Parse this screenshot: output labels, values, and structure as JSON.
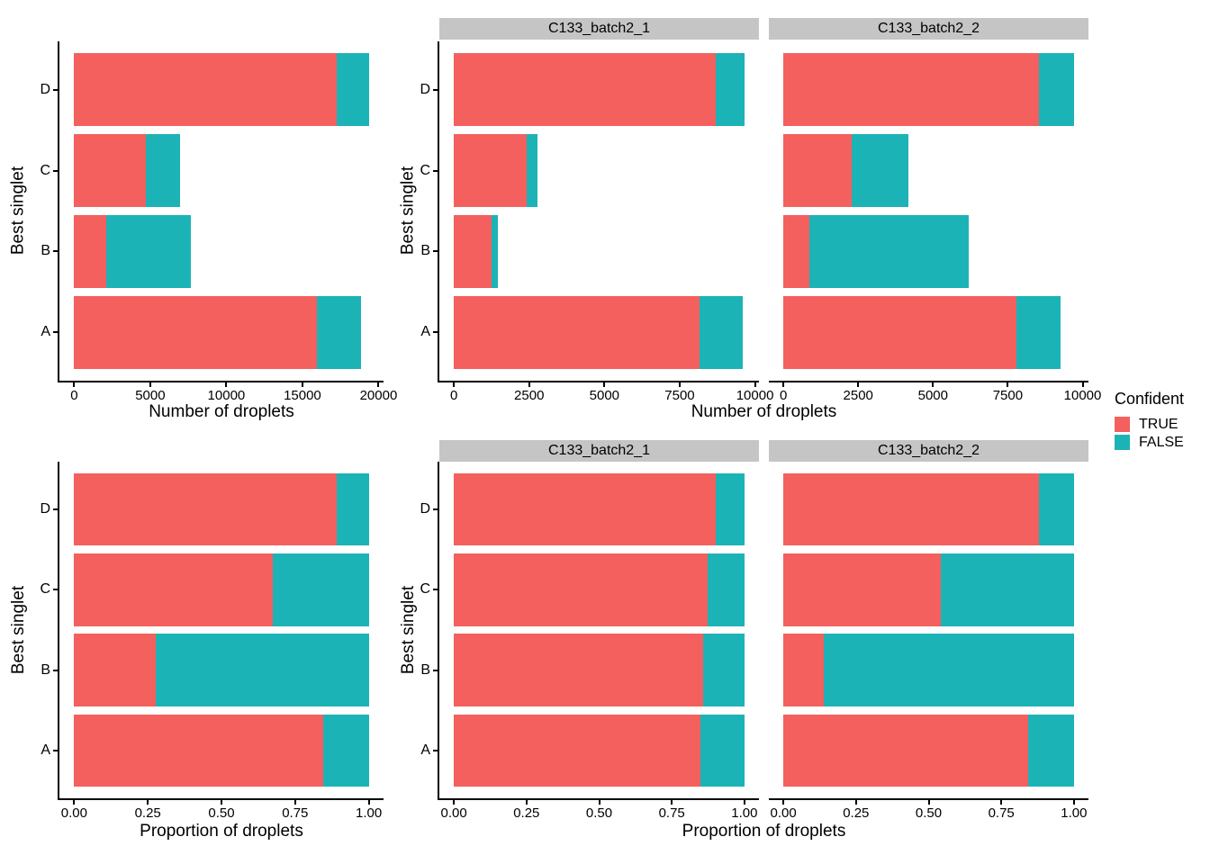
{
  "figure": {
    "background": "#FFFFFF",
    "colors": {
      "TRUE": "#F3605D",
      "FALSE": "#1CB3B7",
      "strip_bg": "#C5C5C5",
      "axis": "#000000",
      "text": "#000000"
    },
    "legend": {
      "title": "Confident",
      "position": "right-middle",
      "entries": [
        {
          "label": "TRUE",
          "color": "#F3605D"
        },
        {
          "label": "FALSE",
          "color": "#1CB3B7"
        }
      ]
    }
  },
  "chart_data": [
    {
      "id": "counts-overall",
      "type": "bar",
      "orientation": "horizontal",
      "stacked": true,
      "grid": false,
      "facet_label": null,
      "xlabel": "Number of droplets",
      "ylabel": "Best singlet",
      "categories": [
        "D",
        "C",
        "B",
        "A"
      ],
      "series": [
        {
          "name": "TRUE",
          "values": [
            17240,
            4690,
            2120,
            15950
          ]
        },
        {
          "name": "FALSE",
          "values": [
            2120,
            2260,
            5550,
            2920
          ]
        }
      ],
      "xlim": [
        0,
        19360
      ],
      "x_ticks": [
        0,
        5000,
        10000,
        15000,
        20000
      ],
      "x_tick_labels": [
        "0",
        "5000",
        "10000",
        "15000",
        "20000"
      ]
    },
    {
      "id": "counts-C133_batch2_1",
      "type": "bar",
      "orientation": "horizontal",
      "stacked": true,
      "grid": false,
      "facet_label": "C133_batch2_1",
      "xlabel": "Number of droplets",
      "ylabel": "Best singlet",
      "categories": [
        "D",
        "C",
        "B",
        "A"
      ],
      "series": [
        {
          "name": "TRUE",
          "values": [
            8700,
            2420,
            1260,
            8150
          ]
        },
        {
          "name": "FALSE",
          "values": [
            950,
            350,
            210,
            1450
          ]
        }
      ],
      "xlim": [
        0,
        9650
      ],
      "x_ticks": [
        0,
        2500,
        5000,
        7500,
        10000
      ],
      "x_tick_labels": [
        "0",
        "2500",
        "5000",
        "7500",
        "10000"
      ]
    },
    {
      "id": "counts-C133_batch2_2",
      "type": "bar",
      "orientation": "horizontal",
      "stacked": true,
      "grid": false,
      "facet_label": "C133_batch2_2",
      "xlabel": "Number of droplets",
      "ylabel": "Best singlet",
      "categories": [
        "D",
        "C",
        "B",
        "A"
      ],
      "series": [
        {
          "name": "TRUE",
          "values": [
            8540,
            2270,
            860,
            7800
          ]
        },
        {
          "name": "FALSE",
          "values": [
            1170,
            1910,
            5340,
            1470
          ]
        }
      ],
      "xlim": [
        0,
        9710
      ],
      "x_ticks": [
        0,
        2500,
        5000,
        7500,
        10000
      ],
      "x_tick_labels": [
        "0",
        "2500",
        "5000",
        "7500",
        "10000"
      ]
    },
    {
      "id": "proportions-overall",
      "type": "bar",
      "orientation": "horizontal",
      "stacked": true,
      "grid": false,
      "facet_label": null,
      "xlabel": "Proportion of droplets",
      "ylabel": "Best singlet",
      "categories": [
        "D",
        "C",
        "B",
        "A"
      ],
      "series": [
        {
          "name": "TRUE",
          "values": [
            0.89,
            0.675,
            0.276,
            0.845
          ]
        },
        {
          "name": "FALSE",
          "values": [
            0.11,
            0.325,
            0.724,
            0.155
          ]
        }
      ],
      "xlim": [
        0,
        1
      ],
      "x_ticks": [
        0,
        0.25,
        0.5,
        0.75,
        1
      ],
      "x_tick_labels": [
        "0.00",
        "0.25",
        "0.50",
        "0.75",
        "1.00"
      ]
    },
    {
      "id": "proportions-C133_batch2_1",
      "type": "bar",
      "orientation": "horizontal",
      "stacked": true,
      "grid": false,
      "facet_label": "C133_batch2_1",
      "xlabel": "Proportion of droplets",
      "ylabel": "Best singlet",
      "categories": [
        "D",
        "C",
        "B",
        "A"
      ],
      "series": [
        {
          "name": "TRUE",
          "values": [
            0.902,
            0.874,
            0.857,
            0.849
          ]
        },
        {
          "name": "FALSE",
          "values": [
            0.098,
            0.126,
            0.143,
            0.151
          ]
        }
      ],
      "xlim": [
        0,
        1
      ],
      "x_ticks": [
        0,
        0.25,
        0.5,
        0.75,
        1
      ],
      "x_tick_labels": [
        "0.00",
        "0.25",
        "0.50",
        "0.75",
        "1.00"
      ]
    },
    {
      "id": "proportions-C133_batch2_2",
      "type": "bar",
      "orientation": "horizontal",
      "stacked": true,
      "grid": false,
      "facet_label": "C133_batch2_2",
      "xlabel": "Proportion of droplets",
      "ylabel": "Best singlet",
      "categories": [
        "D",
        "C",
        "B",
        "A"
      ],
      "series": [
        {
          "name": "TRUE",
          "values": [
            0.88,
            0.543,
            0.139,
            0.841
          ]
        },
        {
          "name": "FALSE",
          "values": [
            0.12,
            0.457,
            0.861,
            0.159
          ]
        }
      ],
      "xlim": [
        0,
        1
      ],
      "x_ticks": [
        0,
        0.25,
        0.5,
        0.75,
        1
      ],
      "x_tick_labels": [
        "0.00",
        "0.25",
        "0.50",
        "0.75",
        "1.00"
      ]
    }
  ]
}
